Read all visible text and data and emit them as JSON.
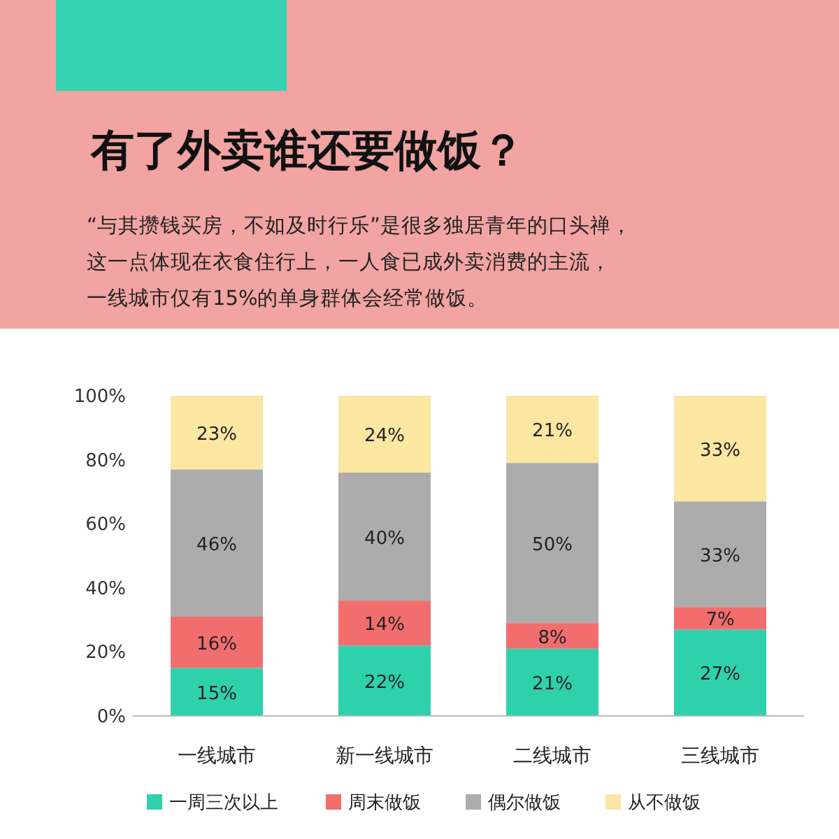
{
  "chart_data": {
    "type": "bar",
    "stacked": true,
    "title": "有了外卖谁还要做饭？",
    "annotations": [
      "“与其攒钱买房，不如及时行乐”是很多独居青年的口头禅，",
      "这一点体现在衣食住行上，一人食已成外卖消费的主流，",
      "一线城市仅有15%的单身群体会经常做饭。"
    ],
    "categories": [
      "一线城市",
      "新一线城市",
      "二线城市",
      "三线城市"
    ],
    "series": [
      {
        "name": "一周三次以上",
        "color": "#2fd1ad",
        "values": [
          15,
          22,
          21,
          27
        ],
        "value_labels": [
          "15%",
          "22%",
          "21%",
          "27%"
        ]
      },
      {
        "name": "周末做饭",
        "color": "#f26e6e",
        "values": [
          16,
          14,
          8,
          7
        ],
        "value_labels": [
          "16%",
          "14%",
          "8%",
          "7%"
        ]
      },
      {
        "name": "偶尔做饭",
        "color": "#acacac",
        "values": [
          46,
          40,
          50,
          33
        ],
        "value_labels": [
          "46%",
          "40%",
          "50%",
          "33%"
        ]
      },
      {
        "name": "从不做饭",
        "color": "#fbe6a2",
        "values": [
          23,
          24,
          21,
          33
        ],
        "value_labels": [
          "23%",
          "24%",
          "21%",
          "33%"
        ]
      }
    ],
    "ylim": [
      0,
      100
    ],
    "yticks": [
      {
        "value": 0,
        "label": "0%"
      },
      {
        "value": 20,
        "label": "20%"
      },
      {
        "value": 40,
        "label": "40%"
      },
      {
        "value": 60,
        "label": "60%"
      },
      {
        "value": 80,
        "label": "80%"
      },
      {
        "value": 100,
        "label": "100%"
      }
    ],
    "legend": "bottom"
  }
}
